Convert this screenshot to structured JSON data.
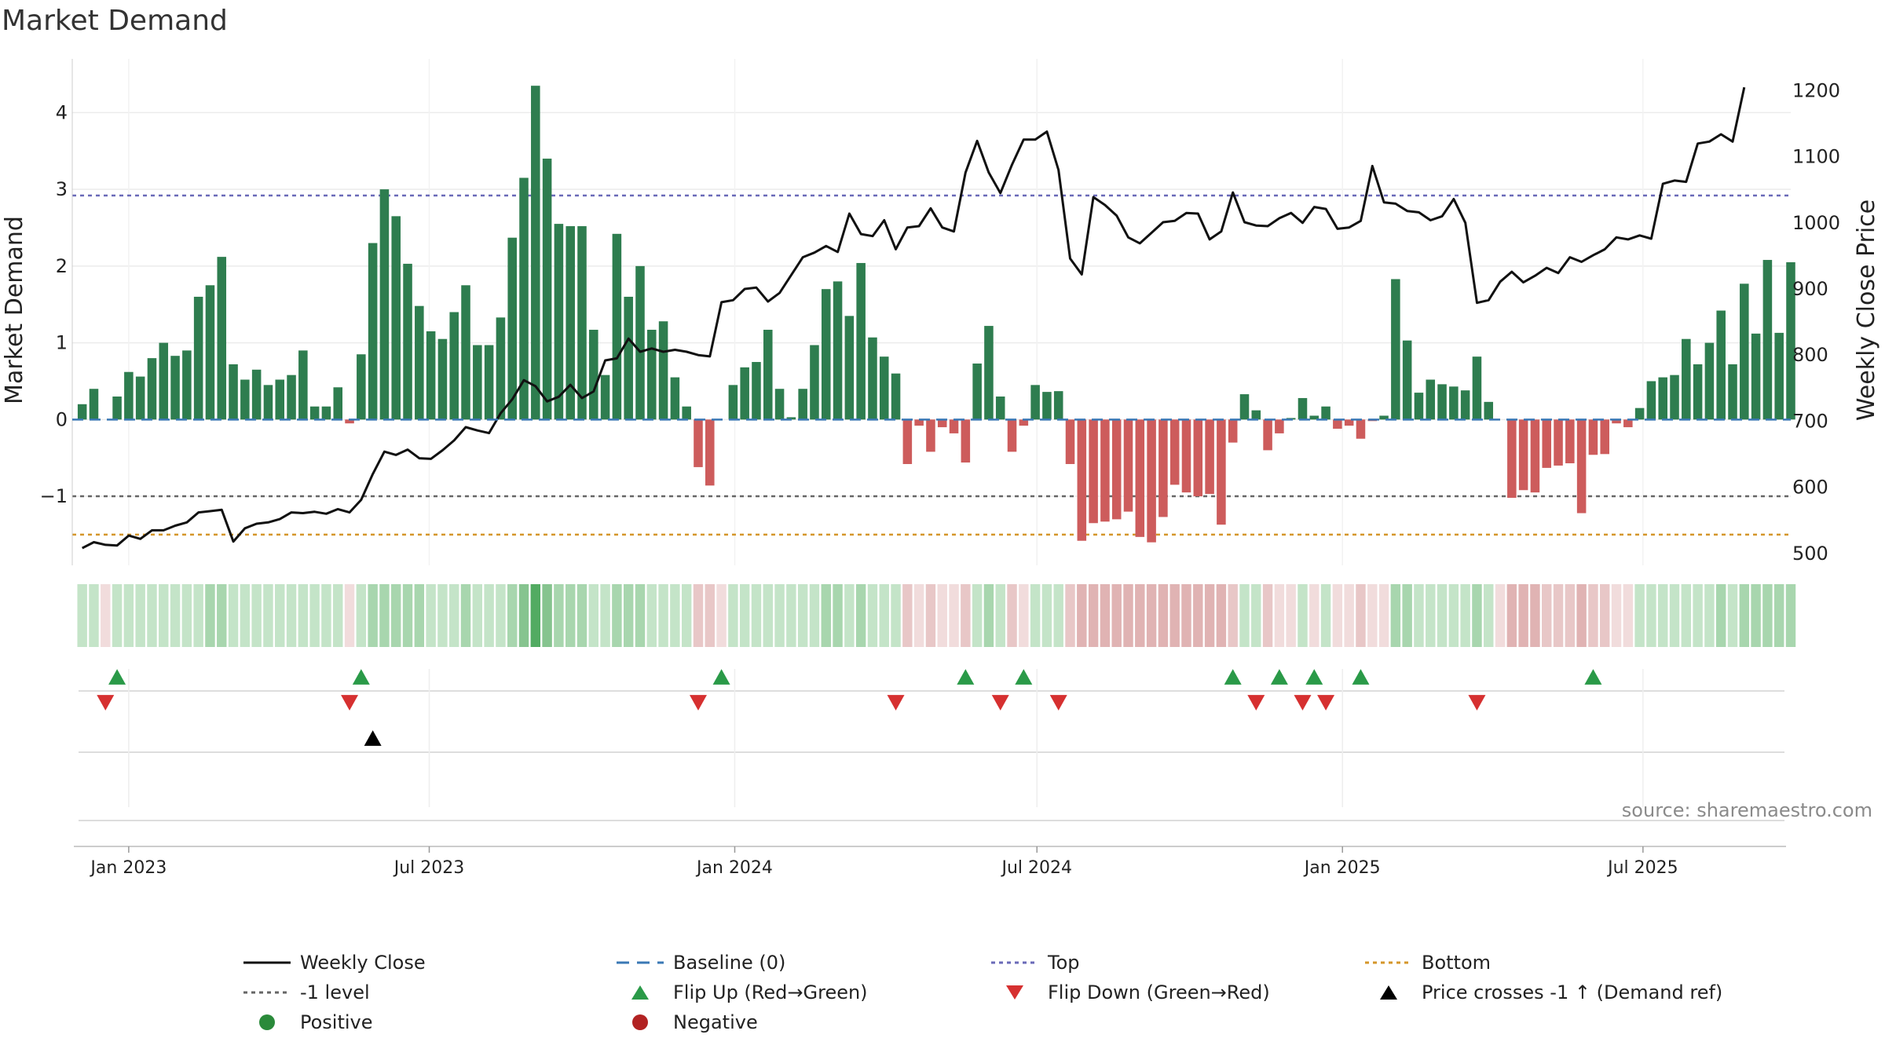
{
  "chart_data": {
    "type": "bar",
    "title": "Market Demand",
    "ylabel": "Market Demand",
    "y2label": "Weekly Close Price",
    "ylim": [
      -1.9,
      4.7
    ],
    "y2lim": [
      482,
      1248
    ],
    "yticks": [
      -1,
      0,
      1,
      2,
      3,
      4
    ],
    "ytick_labels": [
      "−1",
      "0",
      "1",
      "2",
      "3",
      "4"
    ],
    "y2ticks": [
      500,
      600,
      700,
      800,
      900,
      1000,
      1100,
      1200
    ],
    "y2tick_labels": [
      "500",
      "600",
      "700",
      "800",
      "900",
      "1000",
      "1100",
      "1200"
    ],
    "start_date": "2022-12-04",
    "x_range_dates": [
      "2022-11-28",
      "2025-09-28"
    ],
    "date_ticks": [
      {
        "date": "2023-01-01",
        "label": "Jan 2023"
      },
      {
        "date": "2023-07-01",
        "label": "Jul 2023"
      },
      {
        "date": "2024-01-01",
        "label": "Jan 2024"
      },
      {
        "date": "2024-07-01",
        "label": "Jul 2024"
      },
      {
        "date": "2025-01-01",
        "label": "Jan 2025"
      },
      {
        "date": "2025-07-01",
        "label": "Jul 2025"
      }
    ],
    "demand": [
      0.2,
      0.4,
      0,
      0.3,
      0.62,
      0.56,
      0.8,
      1,
      0.83,
      0.9,
      1.6,
      1.75,
      2.12,
      0.72,
      0.52,
      0.65,
      0.45,
      0.52,
      0.58,
      0.9,
      0.17,
      0.17,
      0.42,
      -0.05,
      0.85,
      2.3,
      3.0,
      2.65,
      2.03,
      1.48,
      1.15,
      1.05,
      1.4,
      1.75,
      0.97,
      0.97,
      1.33,
      2.37,
      3.15,
      4.35,
      3.4,
      2.55,
      2.52,
      2.52,
      1.17,
      0.58,
      2.42,
      1.6,
      2.0,
      1.17,
      1.28,
      0.55,
      0.17,
      -0.62,
      -0.86,
      0,
      0.45,
      0.68,
      0.75,
      1.17,
      0.4,
      0.03,
      0.4,
      0.97,
      1.7,
      1.8,
      1.35,
      2.04,
      1.07,
      0.82,
      0.6,
      -0.58,
      -0.08,
      -0.42,
      -0.1,
      -0.18,
      -0.56,
      0.73,
      1.22,
      0.3,
      -0.42,
      -0.08,
      0.45,
      0.36,
      0.37,
      -0.58,
      -1.58,
      -1.35,
      -1.33,
      -1.3,
      -1.2,
      -1.53,
      -1.6,
      -1.27,
      -0.85,
      -0.95,
      -1.0,
      -0.97,
      -1.37,
      -0.3,
      0.33,
      0.12,
      -0.4,
      -0.18,
      0.02,
      0.28,
      0.05,
      0.17,
      -0.12,
      -0.08,
      -0.25,
      -0.02,
      0.05,
      1.83,
      1.03,
      0.35,
      0.52,
      0.46,
      0.43,
      0.38,
      0.82,
      0.23,
      0,
      -1.02,
      -0.92,
      -0.95,
      -0.63,
      -0.6,
      -0.57,
      -1.22,
      -0.46,
      -0.45,
      -0.05,
      -0.1,
      0.15,
      0.5,
      0.55,
      0.58,
      1.05,
      0.72,
      1.0,
      1.42,
      0.72,
      1.77,
      1.12,
      2.08,
      1.13,
      2.05
    ],
    "price": [
      508,
      517,
      513,
      512,
      527,
      522,
      535,
      535,
      542,
      547,
      562,
      564,
      566,
      518,
      538,
      545,
      547,
      552,
      562,
      561,
      563,
      560,
      567,
      562,
      581,
      620,
      654,
      649,
      657,
      644,
      643,
      656,
      671,
      691,
      686,
      682,
      712,
      733,
      762,
      753,
      730,
      737,
      755,
      735,
      745,
      792,
      795,
      825,
      805,
      810,
      805,
      808,
      805,
      800,
      798,
      880,
      883,
      900,
      902,
      881,
      894,
      921,
      948,
      955,
      965,
      956,
      1014,
      983,
      980,
      1004,
      960,
      993,
      995,
      1022,
      993,
      987,
      1076,
      1124,
      1076,
      1045,
      1088,
      1126,
      1126,
      1138,
      1080,
      946,
      922,
      1039,
      1027,
      1011,
      978,
      969,
      985,
      1001,
      1003,
      1015,
      1014,
      975,
      987,
      1046,
      1001,
      996,
      995,
      1007,
      1015,
      1000,
      1024,
      1021,
      991,
      993,
      1003,
      1086,
      1031,
      1029,
      1018,
      1016,
      1004,
      1010,
      1036,
      1000,
      879,
      883,
      911,
      926,
      910,
      920,
      932,
      924,
      948,
      941,
      951,
      960,
      978,
      975,
      981,
      976,
      1059,
      1064,
      1062,
      1120,
      1123,
      1134,
      1123,
      1205
    ],
    "shade_levels": [
      2,
      2,
      -1,
      2,
      2,
      2,
      2,
      2,
      2,
      2,
      2,
      3,
      3,
      2,
      2,
      2,
      2,
      2,
      2,
      2,
      2,
      2,
      2,
      -1,
      2,
      3,
      3,
      3,
      3,
      3,
      2,
      2,
      2,
      3,
      2,
      2,
      2,
      3,
      4,
      5,
      4,
      3,
      3,
      3,
      2,
      2,
      3,
      3,
      3,
      2,
      2,
      2,
      2,
      -2,
      -2,
      -1,
      2,
      2,
      2,
      2,
      2,
      2,
      2,
      2,
      3,
      3,
      2,
      3,
      2,
      2,
      2,
      -2,
      -1,
      -2,
      -1,
      -1,
      -2,
      2,
      3,
      2,
      -2,
      -1,
      2,
      2,
      2,
      -2,
      -3,
      -3,
      -3,
      -3,
      -3,
      -3,
      -3,
      -3,
      -3,
      -3,
      -3,
      -3,
      -3,
      -2,
      2,
      2,
      -2,
      -1,
      -1,
      2,
      -1,
      2,
      -1,
      -1,
      -2,
      -1,
      -1,
      3,
      3,
      2,
      2,
      2,
      2,
      2,
      3,
      2,
      -1,
      -3,
      -3,
      -3,
      -2,
      -2,
      -2,
      -3,
      -2,
      -2,
      -1,
      -1,
      2,
      2,
      2,
      2,
      2,
      2,
      2,
      3,
      2,
      3,
      3,
      3,
      3,
      3
    ],
    "flip_up_weeks": [
      3,
      24,
      55,
      76,
      81,
      99,
      103,
      106,
      110,
      130
    ],
    "flip_down_weeks": [
      2,
      23,
      53,
      70,
      79,
      84,
      101,
      105,
      107,
      120
    ],
    "cross_up_weeks": [
      25
    ],
    "ref_lines": {
      "top": 2.92,
      "neg_one": -1,
      "bottom": -1.5,
      "baseline": 0
    },
    "source_label": "source: sharemaestro.com",
    "legend": [
      {
        "key": "weekly_close",
        "label": "Weekly Close"
      },
      {
        "key": "baseline",
        "label": "Baseline (0)"
      },
      {
        "key": "top",
        "label": "Top"
      },
      {
        "key": "bottom",
        "label": "Bottom"
      },
      {
        "key": "neg_one",
        "label": "-1 level"
      },
      {
        "key": "flip_up",
        "label": "Flip Up (Red→Green)"
      },
      {
        "key": "flip_down",
        "label": "Flip Down (Green→Red)"
      },
      {
        "key": "cross_up",
        "label": "Price crosses -1 ↑ (Demand ref)"
      },
      {
        "key": "positive",
        "label": "Positive"
      },
      {
        "key": "negative",
        "label": "Negative"
      }
    ],
    "colors": {
      "pos_bar": "#2e7d4f",
      "neg_bar": "#cd5c5c",
      "price_line": "#111111",
      "baseline": "#3a78b5",
      "top": "#6a6ab8",
      "neg_one": "#666666",
      "bottom": "#d4962a",
      "flip_up": "#2a9a48",
      "flip_down": "#d63030",
      "cross_up": "#000000",
      "positive_dot": "#2a8a3a",
      "negative_dot": "#b22222"
    }
  }
}
